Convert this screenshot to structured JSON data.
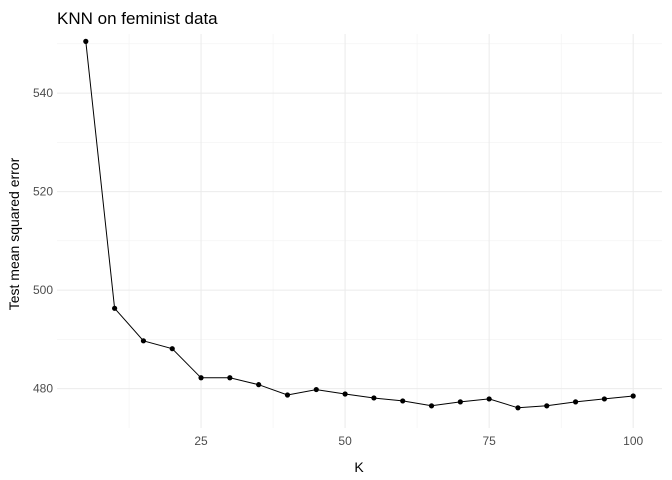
{
  "chart_data": {
    "type": "line",
    "title": "KNN on feminist data",
    "xlabel": "K",
    "ylabel": "Test mean squared error",
    "xlim": [
      0,
      105
    ],
    "ylim": [
      472,
      552
    ],
    "x_ticks": [
      25,
      50,
      75,
      100
    ],
    "y_ticks": [
      480,
      500,
      520,
      540
    ],
    "x_minor": [
      12.5,
      37.5,
      62.5,
      87.5
    ],
    "y_minor": [
      490,
      510,
      530,
      550
    ],
    "grid": true,
    "legend": "none",
    "series": [
      {
        "x": [
          5,
          10,
          15,
          20,
          25,
          30,
          35,
          40,
          45,
          50,
          55,
          60,
          65,
          70,
          75,
          80,
          85,
          90,
          95,
          100
        ],
        "values": [
          550.5,
          496.3,
          489.7,
          488.1,
          482.2,
          482.2,
          480.8,
          478.7,
          479.8,
          478.9,
          478.1,
          477.5,
          476.5,
          477.3,
          477.9,
          476.1,
          476.5,
          477.3,
          477.9,
          478.5
        ]
      }
    ],
    "color": "#000000"
  }
}
